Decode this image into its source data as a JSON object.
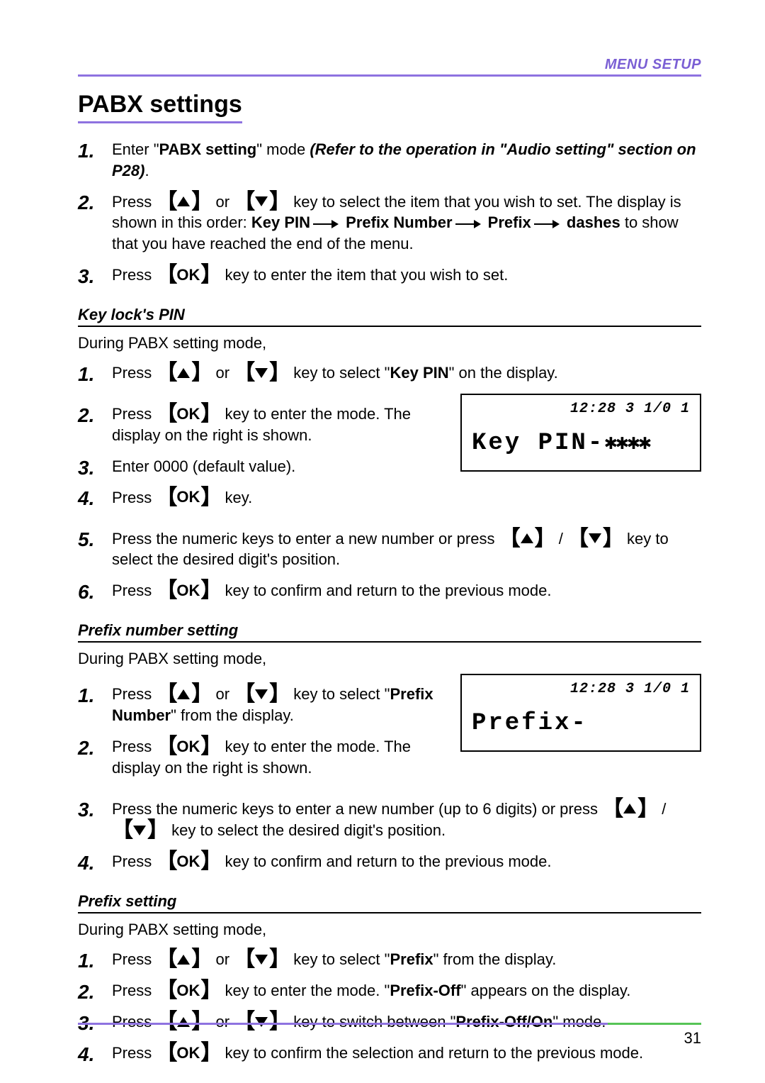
{
  "colors": {
    "accent_purple": "#8e72e0",
    "accent_purple_text": "#7a5fd4",
    "accent_green": "#56c456",
    "text": "#000000",
    "background": "#ffffff"
  },
  "header": {
    "label": "MENU SETUP"
  },
  "title": "PABX settings",
  "intro_steps": [
    {
      "num": "1",
      "segments": [
        {
          "t": "Enter \""
        },
        {
          "t": "PABX setting",
          "b": true
        },
        {
          "t": "\" mode "
        },
        {
          "t": "(Refer to the operation in \"Audio setting\" section on P28)",
          "bi": true
        },
        {
          "t": "."
        }
      ]
    },
    {
      "num": "2",
      "segments": [
        {
          "t": "Press "
        },
        {
          "key": "up"
        },
        {
          "t": " or "
        },
        {
          "key": "down"
        },
        {
          "t": " key to select the item that you wish to set. The display is shown in this order: "
        },
        {
          "t": "Key PIN",
          "b": true
        },
        {
          "arrow": true
        },
        {
          "t": " Prefix Number",
          "b": true
        },
        {
          "arrow": true
        },
        {
          "t": " Prefix",
          "b": true
        },
        {
          "arrow": true
        },
        {
          "t": " dashes",
          "b": true
        },
        {
          "t": " to show that you have reached the end of the menu."
        }
      ]
    },
    {
      "num": "3",
      "segments": [
        {
          "t": "Press "
        },
        {
          "key": "OK"
        },
        {
          "t": " key to enter the item that you wish to set."
        }
      ]
    }
  ],
  "section_keypin": {
    "heading": "Key lock's PIN",
    "lead": "During PABX setting mode,",
    "lcd": {
      "time": "12:28 3 1/0 1",
      "main_pre": "Key PIN-",
      "main_suf": "✱✱✱✱"
    },
    "steps": [
      {
        "num": "1",
        "segments": [
          {
            "t": "Press "
          },
          {
            "key": "up"
          },
          {
            "t": " or "
          },
          {
            "key": "down"
          },
          {
            "t": " key to select \""
          },
          {
            "t": "Key PIN",
            "b": true
          },
          {
            "t": "\" on the display."
          }
        ]
      },
      {
        "num": "2",
        "segments": [
          {
            "t": "Press "
          },
          {
            "key": "OK"
          },
          {
            "t": " key to enter the mode. The display on the right is shown."
          }
        ],
        "with_lcd": true
      },
      {
        "num": "3",
        "segments": [
          {
            "t": "Enter 0000 (default value)."
          }
        ]
      },
      {
        "num": "4",
        "segments": [
          {
            "t": "Press "
          },
          {
            "key": "OK"
          },
          {
            "t": " key."
          }
        ]
      },
      {
        "num": "5",
        "segments": [
          {
            "t": "Press the numeric keys to enter a new number or press "
          },
          {
            "key": "up"
          },
          {
            "t": " / "
          },
          {
            "key": "down"
          },
          {
            "t": " key to select the desired digit's position."
          }
        ]
      },
      {
        "num": "6",
        "segments": [
          {
            "t": "Press "
          },
          {
            "key": "OK"
          },
          {
            "t": " key to confirm and return to the previous mode."
          }
        ]
      }
    ]
  },
  "section_prefixnum": {
    "heading": "Prefix number setting",
    "lead": "During PABX setting mode,",
    "lcd": {
      "time": "12:28 3 1/0 1",
      "main_pre": "Prefix-",
      "main_suf": ""
    },
    "steps": [
      {
        "num": "1",
        "segments": [
          {
            "t": "Press "
          },
          {
            "key": "up"
          },
          {
            "t": " or "
          },
          {
            "key": "down"
          },
          {
            "t": " key to select \""
          },
          {
            "t": "Prefix Number",
            "b": true
          },
          {
            "t": "\" from the display."
          }
        ],
        "with_lcd": true
      },
      {
        "num": "2",
        "segments": [
          {
            "t": "Press "
          },
          {
            "key": "OK"
          },
          {
            "t": " key to enter the mode. The display on the right is shown."
          }
        ]
      },
      {
        "num": "3",
        "segments": [
          {
            "t": "Press the numeric keys to enter a new number (up to 6 digits) or press "
          },
          {
            "key": "up"
          },
          {
            "t": " / "
          },
          {
            "key": "down"
          },
          {
            "t": " key to select the desired digit's position."
          }
        ]
      },
      {
        "num": "4",
        "segments": [
          {
            "t": "Press "
          },
          {
            "key": "OK"
          },
          {
            "t": " key to confirm and return to the previous mode."
          }
        ]
      }
    ]
  },
  "section_prefix": {
    "heading": "Prefix setting",
    "lead": "During PABX setting mode,",
    "steps": [
      {
        "num": "1",
        "segments": [
          {
            "t": "Press "
          },
          {
            "key": "up"
          },
          {
            "t": " or "
          },
          {
            "key": "down"
          },
          {
            "t": " key to select \""
          },
          {
            "t": "Prefix",
            "b": true
          },
          {
            "t": "\" from the display."
          }
        ]
      },
      {
        "num": "2",
        "segments": [
          {
            "t": "Press "
          },
          {
            "key": "OK"
          },
          {
            "t": " key to enter the mode. \""
          },
          {
            "t": "Prefix-Off",
            "b": true
          },
          {
            "t": "\" appears on the display."
          }
        ]
      },
      {
        "num": "3",
        "segments": [
          {
            "t": "Press "
          },
          {
            "key": "up"
          },
          {
            "t": " or "
          },
          {
            "key": "down"
          },
          {
            "t": " key to switch between \""
          },
          {
            "t": "Prefix-Off/On",
            "b": true
          },
          {
            "t": "\" mode."
          }
        ]
      },
      {
        "num": "4",
        "segments": [
          {
            "t": "Press "
          },
          {
            "key": "OK"
          },
          {
            "t": " key to confirm the selection and return to the previous mode."
          }
        ]
      }
    ]
  },
  "footer": {
    "page_number": "31"
  }
}
